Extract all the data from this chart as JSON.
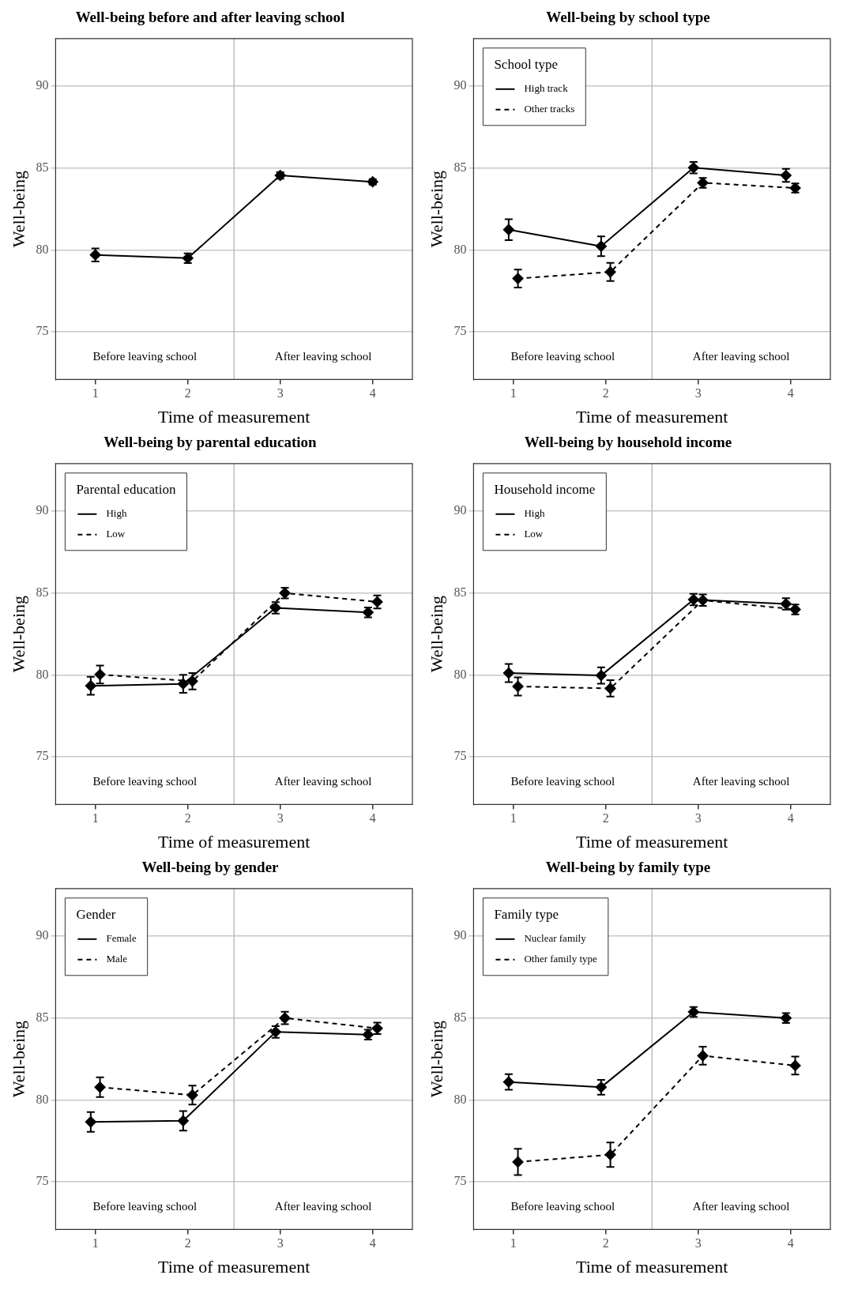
{
  "chart_data": [
    {
      "type": "line",
      "title": "Well-being before and after leaving school",
      "xlabel": "Time of measurement",
      "ylabel": "Well-being",
      "xlim": [
        0.57,
        4.43
      ],
      "xticks": [
        1,
        2,
        3,
        4
      ],
      "ylim": [
        72.1,
        92.9
      ],
      "yticks": [
        75,
        80,
        85,
        90
      ],
      "grid": "y",
      "marker": "diamond",
      "legend": false,
      "ref_lines": [
        {
          "axis": "x",
          "value": 2.5,
          "color": "#bebebe"
        }
      ],
      "annotations": [
        "Before leaving school",
        "After leaving school"
      ],
      "series": [
        {
          "color": "#000000",
          "line_style": "solid",
          "x": [
            1,
            2,
            3,
            4
          ],
          "values": [
            79.7,
            79.5,
            84.55,
            84.16
          ],
          "errors": [
            0.4,
            0.3,
            0.2,
            0.17
          ]
        }
      ]
    },
    {
      "type": "line",
      "title": "Well-being by school type",
      "xlabel": "Time of measurement",
      "ylabel": "Well-being",
      "legend_title": "School type",
      "xlim": [
        0.57,
        4.43
      ],
      "xticks": [
        1,
        2,
        3,
        4
      ],
      "ylim": [
        72.1,
        92.9
      ],
      "yticks": [
        75,
        80,
        85,
        90
      ],
      "grid": "y",
      "marker": "diamond",
      "legend": "top left",
      "ref_lines": [
        {
          "axis": "x",
          "value": 2.5,
          "color": "#bebebe"
        }
      ],
      "annotations": [
        "Before leaving school",
        "After leaving school"
      ],
      "series": [
        {
          "name": "High track",
          "color": "#000000",
          "line_style": "solid",
          "x": [
            0.95,
            1.95,
            2.95,
            3.95
          ],
          "values": [
            81.24,
            80.23,
            85.02,
            84.55
          ],
          "errors": [
            0.64,
            0.6,
            0.35,
            0.4
          ]
        },
        {
          "name": "Other tracks",
          "color": "#000000",
          "line_style": "dashed",
          "x": [
            1.05,
            2.05,
            3.05,
            4.05
          ],
          "values": [
            78.26,
            78.66,
            84.1,
            83.78
          ],
          "errors": [
            0.55,
            0.55,
            0.3,
            0.28
          ]
        }
      ]
    },
    {
      "type": "line",
      "title": "Well-being by parental education",
      "xlabel": "Time of measurement",
      "ylabel": "Well-being",
      "legend_title": "Parental education",
      "xlim": [
        0.57,
        4.43
      ],
      "xticks": [
        1,
        2,
        3,
        4
      ],
      "ylim": [
        72.1,
        92.9
      ],
      "yticks": [
        75,
        80,
        85,
        90
      ],
      "grid": "y",
      "marker": "diamond",
      "legend": "top left",
      "ref_lines": [
        {
          "axis": "x",
          "value": 2.5,
          "color": "#bebebe"
        }
      ],
      "annotations": [
        "Before leaving school",
        "After leaving school"
      ],
      "series": [
        {
          "name": "High",
          "color": "#000000",
          "line_style": "solid",
          "x": [
            0.95,
            1.95,
            2.95,
            3.95
          ],
          "values": [
            79.34,
            79.46,
            84.1,
            83.82
          ],
          "errors": [
            0.55,
            0.55,
            0.35,
            0.3
          ]
        },
        {
          "name": "Low",
          "color": "#000000",
          "line_style": "dashed",
          "x": [
            1.05,
            2.05,
            3.05,
            4.05
          ],
          "values": [
            80.03,
            79.62,
            85.0,
            84.46
          ],
          "errors": [
            0.55,
            0.5,
            0.33,
            0.4
          ]
        }
      ]
    },
    {
      "type": "line",
      "title": "Well-being by household income",
      "xlabel": "Time of measurement",
      "ylabel": "Well-being",
      "legend_title": "Household income",
      "xlim": [
        0.57,
        4.43
      ],
      "xticks": [
        1,
        2,
        3,
        4
      ],
      "ylim": [
        72.1,
        92.9
      ],
      "yticks": [
        75,
        80,
        85,
        90
      ],
      "grid": "y",
      "marker": "diamond",
      "legend": "top left",
      "ref_lines": [
        {
          "axis": "x",
          "value": 2.5,
          "color": "#bebebe"
        }
      ],
      "annotations": [
        "Before leaving school",
        "After leaving school"
      ],
      "series": [
        {
          "name": "High",
          "color": "#000000",
          "line_style": "solid",
          "x": [
            0.95,
            1.95,
            2.95,
            3.95
          ],
          "values": [
            80.12,
            79.97,
            84.6,
            84.34
          ],
          "errors": [
            0.55,
            0.5,
            0.35,
            0.35
          ]
        },
        {
          "name": "Low",
          "color": "#000000",
          "line_style": "dashed",
          "x": [
            1.05,
            2.05,
            3.05,
            4.05
          ],
          "values": [
            79.3,
            79.18,
            84.56,
            84.0
          ],
          "errors": [
            0.55,
            0.5,
            0.35,
            0.3
          ]
        }
      ]
    },
    {
      "type": "line",
      "title": "Well-being by gender",
      "xlabel": "Time of measurement",
      "ylabel": "Well-being",
      "legend_title": "Gender",
      "xlim": [
        0.57,
        4.43
      ],
      "xticks": [
        1,
        2,
        3,
        4
      ],
      "ylim": [
        72.1,
        92.9
      ],
      "yticks": [
        75,
        80,
        85,
        90
      ],
      "grid": "y",
      "marker": "diamond",
      "legend": "top left",
      "ref_lines": [
        {
          "axis": "x",
          "value": 2.5,
          "color": "#bebebe"
        }
      ],
      "annotations": [
        "Before leaving school",
        "After leaving school"
      ],
      "series": [
        {
          "name": "Female",
          "color": "#000000",
          "line_style": "solid",
          "x": [
            0.95,
            1.95,
            2.95,
            3.95
          ],
          "values": [
            78.66,
            78.73,
            84.15,
            83.99
          ],
          "errors": [
            0.6,
            0.6,
            0.35,
            0.3
          ]
        },
        {
          "name": "Male",
          "color": "#000000",
          "line_style": "dashed",
          "x": [
            1.05,
            2.05,
            3.05,
            4.05
          ],
          "values": [
            80.78,
            80.3,
            85.0,
            84.37
          ],
          "errors": [
            0.6,
            0.58,
            0.38,
            0.35
          ]
        }
      ]
    },
    {
      "type": "line",
      "title": "Well-being by family type",
      "xlabel": "Time of measurement",
      "ylabel": "Well-being",
      "legend_title": "Family type",
      "xlim": [
        0.57,
        4.43
      ],
      "xticks": [
        1,
        2,
        3,
        4
      ],
      "ylim": [
        72.1,
        92.9
      ],
      "yticks": [
        75,
        80,
        85,
        90
      ],
      "grid": "y",
      "marker": "diamond",
      "legend": "top left",
      "ref_lines": [
        {
          "axis": "x",
          "value": 2.5,
          "color": "#bebebe"
        }
      ],
      "annotations": [
        "Before leaving school",
        "After leaving school"
      ],
      "series": [
        {
          "name": "Nuclear family",
          "color": "#000000",
          "line_style": "solid",
          "x": [
            0.95,
            1.95,
            2.95,
            3.95
          ],
          "values": [
            81.1,
            80.78,
            85.37,
            85.0
          ],
          "errors": [
            0.48,
            0.45,
            0.3,
            0.3
          ]
        },
        {
          "name": "Other family type",
          "color": "#000000",
          "line_style": "dashed",
          "x": [
            1.05,
            2.05,
            3.05,
            4.05
          ],
          "values": [
            76.22,
            76.66,
            82.7,
            82.1
          ],
          "errors": [
            0.8,
            0.75,
            0.55,
            0.55
          ]
        }
      ]
    }
  ]
}
